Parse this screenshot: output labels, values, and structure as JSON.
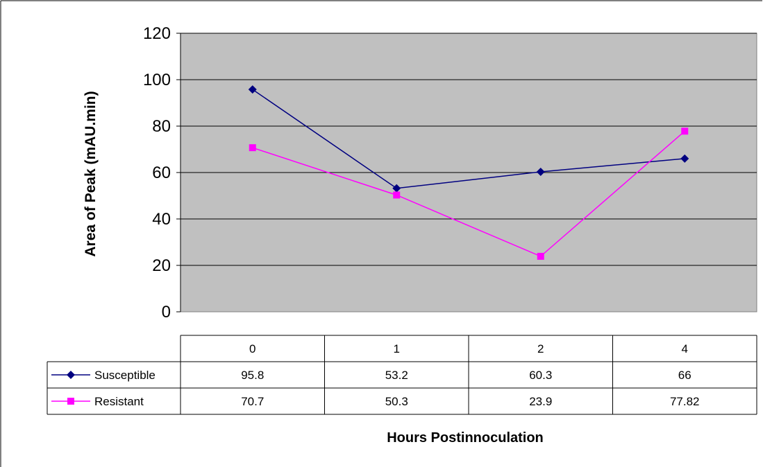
{
  "chart_data": {
    "type": "line",
    "ylabel": "Area of Peak (mAU.min)",
    "xlabel": "Hours Postinnoculation",
    "categories": [
      "0",
      "1",
      "2",
      "4"
    ],
    "ylim": [
      0,
      120
    ],
    "yticks": [
      0,
      20,
      40,
      60,
      80,
      100,
      120
    ],
    "grid": true,
    "legend": "data-table-left",
    "series": [
      {
        "name": "Susceptible",
        "values": [
          95.8,
          53.2,
          60.3,
          66
        ],
        "labels": [
          "95.8",
          "53.2",
          "60.3",
          "66"
        ],
        "color": "#000080",
        "marker": "diamond"
      },
      {
        "name": "Resistant",
        "values": [
          70.7,
          50.3,
          23.9,
          77.82
        ],
        "labels": [
          "70.7",
          "50.3",
          "23.9",
          "77.82"
        ],
        "color": "#ff00ff",
        "marker": "square"
      }
    ],
    "plot_background": "#c0c0c0"
  }
}
